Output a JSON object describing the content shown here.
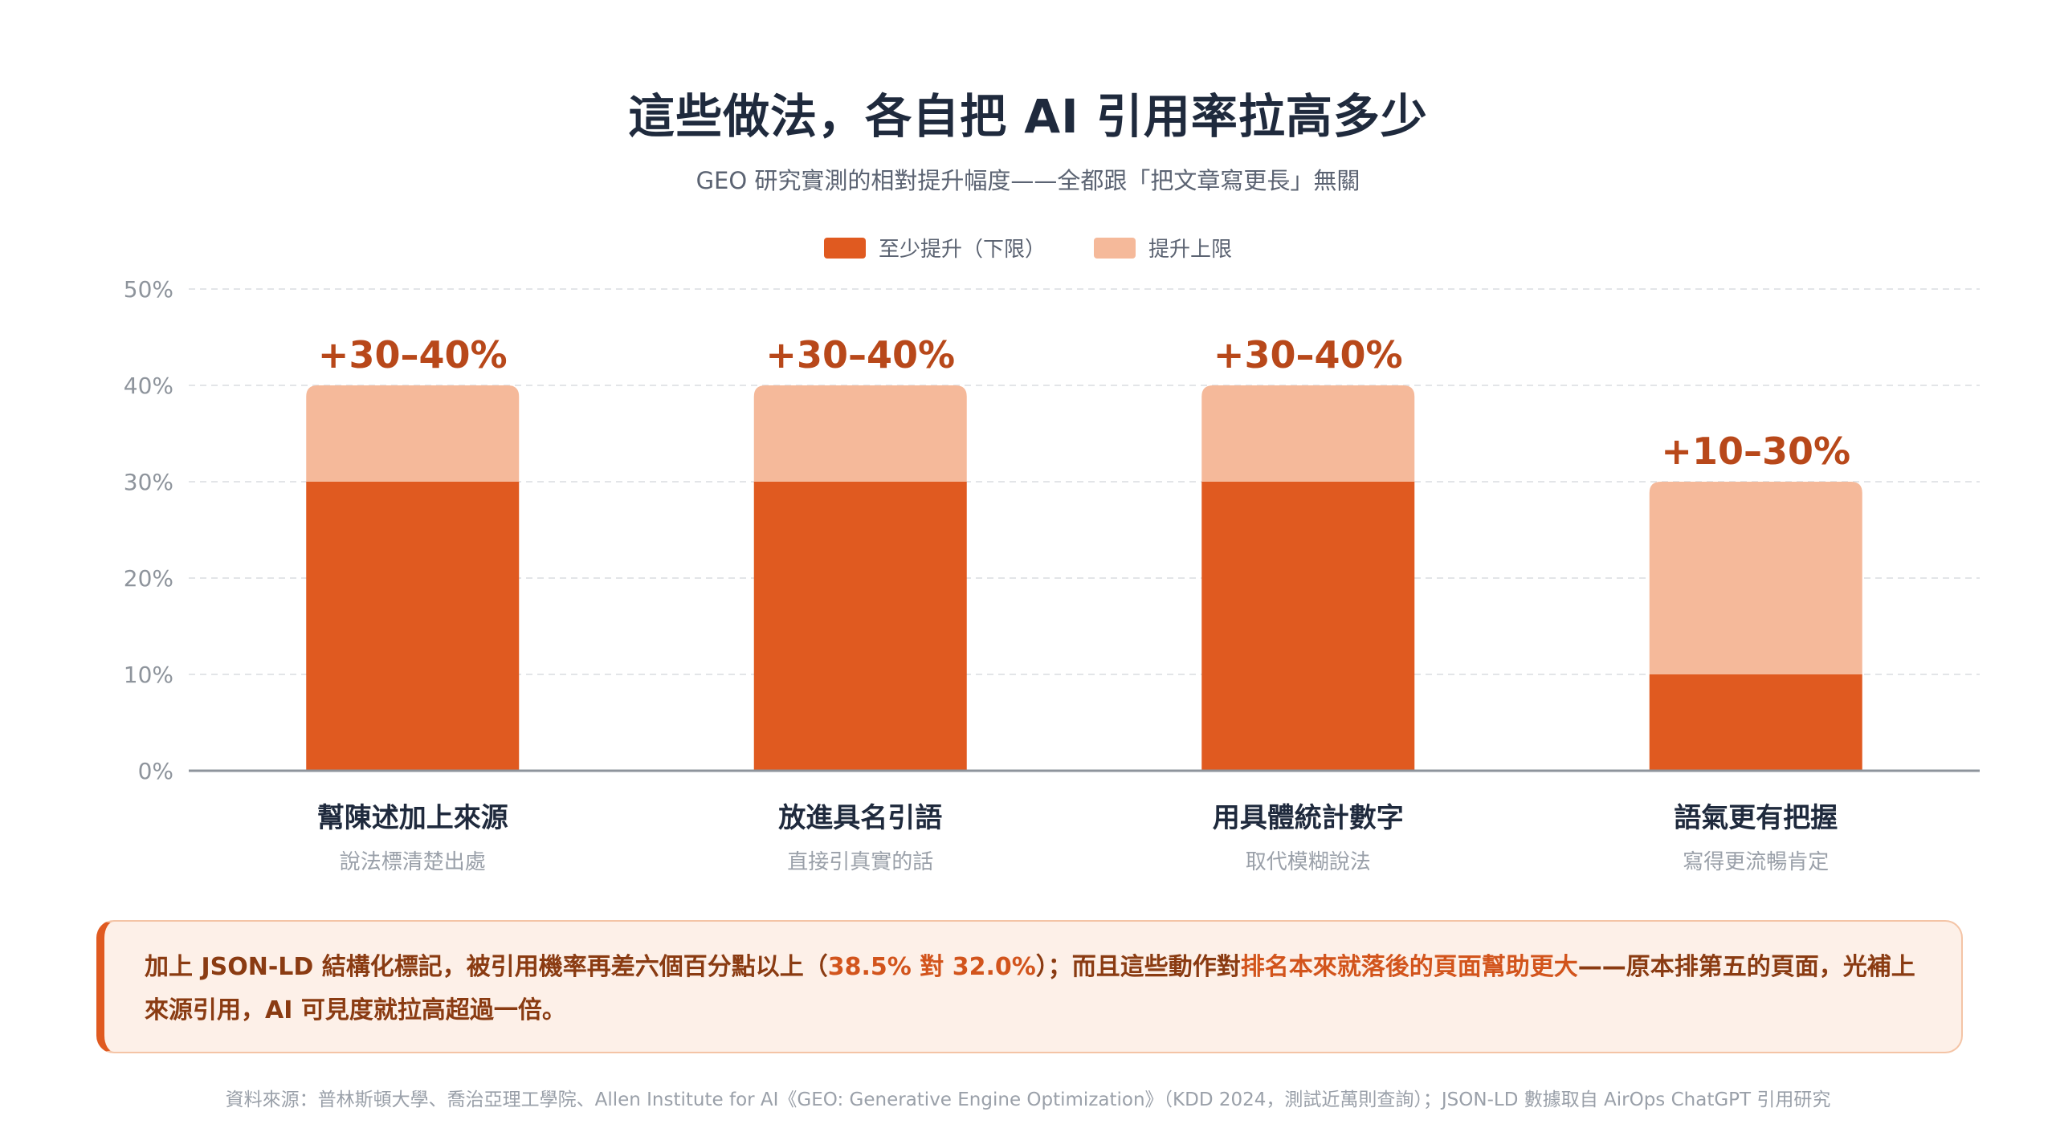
{
  "title": "這些做法，各自把 AI 引用率拉高多少",
  "subtitle": "GEO 研究實測的相對提升幅度——全都跟「把文章寫更長」無關",
  "legend": {
    "lower": "至少提升（下限）",
    "upper": "提升上限"
  },
  "colors": {
    "lower": "#e05a20",
    "upper": "#f5b99a",
    "label": "#b8481a",
    "axis": "#8e949c",
    "grid": "#e3e5e8"
  },
  "chart_data": {
    "type": "bar",
    "stacked": true,
    "categories": [
      "幫陳述加上來源",
      "放進具名引語",
      "用具體統計數字",
      "語氣更有把握"
    ],
    "category_subtitles": [
      "說法標清楚出處",
      "直接引真實的話",
      "取代模糊說法",
      "寫得更流暢肯定"
    ],
    "series": [
      {
        "name": "至少提升（下限）",
        "values": [
          30,
          30,
          30,
          10
        ]
      },
      {
        "name": "提升上限",
        "values": [
          10,
          10,
          10,
          20
        ]
      }
    ],
    "bar_labels": [
      "+30–40%",
      "+30–40%",
      "+30–40%",
      "+10–30%"
    ],
    "yticks": [
      "0%",
      "10%",
      "20%",
      "30%",
      "40%",
      "50%"
    ],
    "ylim": [
      0,
      50
    ],
    "grid": true,
    "legend_position": "top-center"
  },
  "callout": {
    "part1": "加上 JSON-LD 結構化標記，被引用機率再差六個百分點以上（",
    "part2": "38.5% 對 32.0%",
    "part3": "）；而且這些動作對",
    "part4": "排名本來就落後的頁面幫助更大",
    "part5": "——原本排第五的頁面，光補上來源引用，AI 可見度就拉高超過一倍。"
  },
  "source": "資料來源：普林斯頓大學、喬治亞理工學院、Allen Institute for AI《GEO: Generative Engine Optimization》（KDD 2024，測試近萬則查詢）；JSON-LD 數據取自 AirOps ChatGPT 引用研究"
}
